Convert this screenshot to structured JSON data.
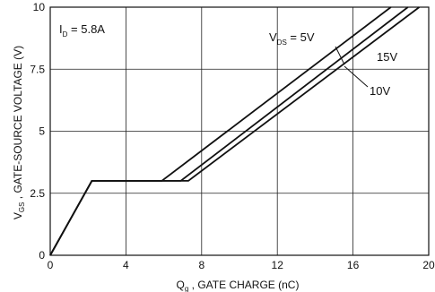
{
  "chart_data": {
    "type": "line",
    "xlabel_main": "Q",
    "xlabel_sub": "g",
    "xlabel_rest": " , GATE CHARGE (nC)",
    "ylabel_main": "V",
    "ylabel_sub": "GS",
    "ylabel_rest": " , GATE-SOURCE VOLTAGE (V)",
    "xlim": [
      0,
      20
    ],
    "ylim": [
      0,
      10
    ],
    "x_ticks": [
      0,
      4,
      8,
      12,
      16,
      20
    ],
    "y_ticks": [
      0,
      2.5,
      5,
      7.5,
      10
    ],
    "x_tick_labels": [
      "0",
      "4",
      "8",
      "12",
      "16",
      "20"
    ],
    "y_tick_labels": [
      "0",
      "2.5",
      "5",
      "7.5",
      "10"
    ],
    "grid": true,
    "annotation_id_main": "I",
    "annotation_id_sub": "D",
    "annotation_id_rest": " = 5.8A",
    "annotation_vds_main": "V",
    "annotation_vds_sub": "DS",
    "annotation_vds_rest": "  = 5V",
    "series": [
      {
        "name": "5V",
        "x": [
          0,
          2.2,
          5.9,
          18.0
        ],
        "y": [
          0,
          3.0,
          3.0,
          10
        ]
      },
      {
        "name": "10V",
        "x": [
          0,
          2.2,
          6.9,
          18.9
        ],
        "y": [
          0,
          3.0,
          3.0,
          10
        ]
      },
      {
        "name": "15V",
        "x": [
          0,
          2.2,
          7.3,
          19.5
        ],
        "y": [
          0,
          3.0,
          3.0,
          10
        ]
      }
    ],
    "series_labels": [
      "15V",
      "10V"
    ]
  }
}
